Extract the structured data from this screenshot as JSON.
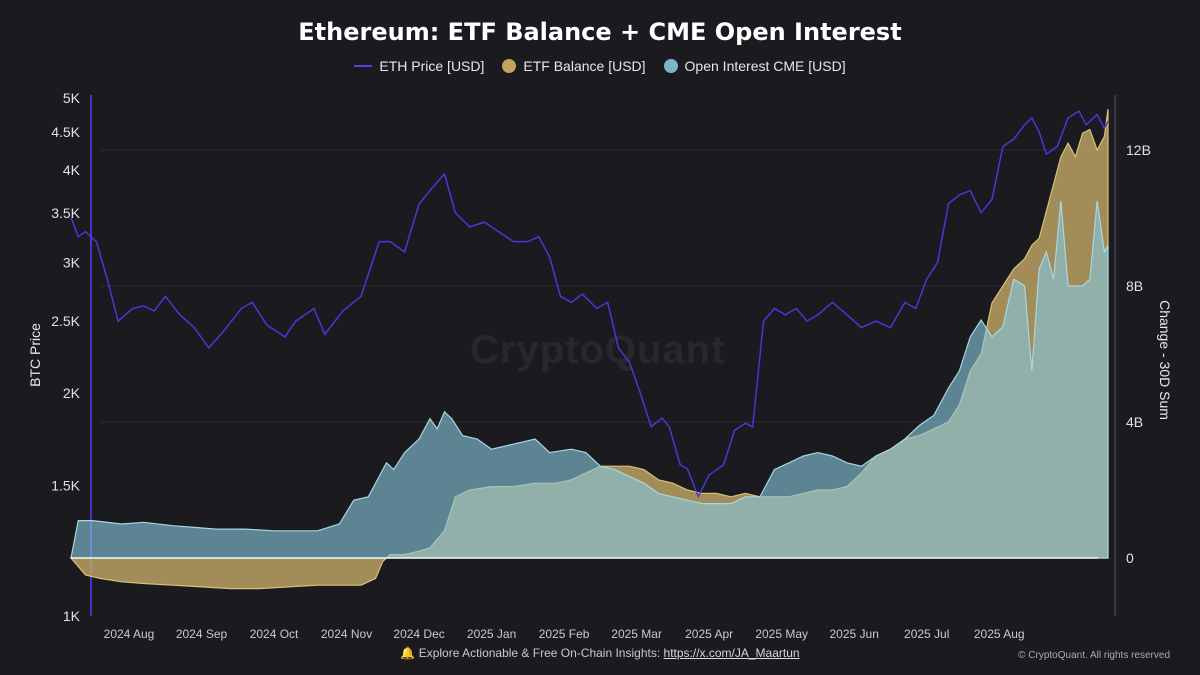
{
  "chart_data": {
    "type": "line+area",
    "title": "Ethereum: ETF Balance + CME Open Interest",
    "y_left_label": "BTC Price",
    "y_right_label": "Change - 30D Sum",
    "y_left_scale": "log",
    "y_left_ticks": [
      "1K",
      "1.5K",
      "2K",
      "2.5K",
      "3K",
      "3.5K",
      "4K",
      "4.5K",
      "5K"
    ],
    "y_left_tick_values": [
      1000,
      1500,
      2000,
      2500,
      3000,
      3500,
      4000,
      4500,
      5000
    ],
    "y_right_ticks": [
      "0",
      "4B",
      "8B",
      "12B"
    ],
    "y_right_tick_values": [
      0,
      4,
      8,
      12
    ],
    "y_right_range": [
      -1.7,
      13.5
    ],
    "x_ticks": [
      "2024 Aug",
      "2024 Sep",
      "2024 Oct",
      "2024 Nov",
      "2024 Dec",
      "2025 Jan",
      "2025 Feb",
      "2025 Mar",
      "2025 Apr",
      "2025 May",
      "2025 Jun",
      "2025 Jul",
      "2025 Aug"
    ],
    "x_range": [
      0,
      13.9
    ],
    "colors": {
      "eth": "#5a3fd8",
      "etf": "#cbb574",
      "oi": "#8cc4d8"
    },
    "legend_position": "top-center",
    "grid": true,
    "series": [
      {
        "name": "ETH Price [USD]",
        "axis": "left",
        "style": "line",
        "x": [
          -0.4,
          -0.3,
          -0.2,
          -0.05,
          0.1,
          0.25,
          0.45,
          0.6,
          0.75,
          0.9,
          1.1,
          1.3,
          1.5,
          1.7,
          1.95,
          2.1,
          2.3,
          2.55,
          2.7,
          2.95,
          3.1,
          3.35,
          3.6,
          3.85,
          4.0,
          4.2,
          4.4,
          4.6,
          4.75,
          4.9,
          5.1,
          5.3,
          5.5,
          5.7,
          5.9,
          6.05,
          6.2,
          6.35,
          6.5,
          6.65,
          6.85,
          7.0,
          7.15,
          7.3,
          7.45,
          7.6,
          7.75,
          7.85,
          8.0,
          8.1,
          8.25,
          8.4,
          8.6,
          8.75,
          8.9,
          9.0,
          9.15,
          9.3,
          9.45,
          9.6,
          9.75,
          9.9,
          10.1,
          10.3,
          10.5,
          10.7,
          10.9,
          11.1,
          11.25,
          11.4,
          11.55,
          11.7,
          11.85,
          12.0,
          12.15,
          12.3,
          12.45,
          12.6,
          12.75,
          12.85,
          12.95,
          13.05,
          13.2,
          13.35,
          13.5,
          13.6,
          13.75,
          13.85,
          13.9
        ],
        "y": [
          3450,
          3250,
          3300,
          3200,
          2850,
          2500,
          2600,
          2620,
          2580,
          2700,
          2550,
          2450,
          2300,
          2420,
          2600,
          2650,
          2470,
          2380,
          2500,
          2600,
          2400,
          2580,
          2700,
          3200,
          3200,
          3100,
          3600,
          3800,
          3950,
          3500,
          3350,
          3400,
          3300,
          3200,
          3200,
          3250,
          3050,
          2700,
          2650,
          2720,
          2600,
          2650,
          2300,
          2200,
          2000,
          1800,
          1850,
          1800,
          1600,
          1580,
          1450,
          1550,
          1600,
          1780,
          1820,
          1800,
          2500,
          2600,
          2550,
          2600,
          2500,
          2550,
          2650,
          2550,
          2450,
          2500,
          2450,
          2650,
          2600,
          2850,
          3000,
          3600,
          3700,
          3750,
          3500,
          3650,
          4300,
          4400,
          4600,
          4700,
          4500,
          4200,
          4300,
          4700,
          4800,
          4600,
          4750,
          4550,
          4650
        ]
      },
      {
        "name": "ETF Balance [USD]",
        "axis": "right",
        "style": "area",
        "x": [
          -0.4,
          -0.2,
          0.0,
          0.3,
          0.6,
          1.0,
          1.4,
          1.8,
          2.2,
          2.6,
          3.0,
          3.3,
          3.6,
          3.8,
          3.9,
          4.0,
          4.1,
          4.2,
          4.4,
          4.55,
          4.75,
          4.9,
          5.1,
          5.4,
          5.7,
          6.0,
          6.3,
          6.5,
          6.7,
          6.9,
          7.1,
          7.3,
          7.5,
          7.7,
          7.9,
          8.1,
          8.3,
          8.5,
          8.7,
          8.9,
          9.1,
          9.3,
          9.5,
          9.7,
          9.9,
          10.1,
          10.3,
          10.5,
          10.7,
          10.9,
          11.1,
          11.3,
          11.5,
          11.7,
          11.85,
          12.0,
          12.15,
          12.3,
          12.45,
          12.6,
          12.75,
          12.85,
          12.95,
          13.05,
          13.15,
          13.25,
          13.35,
          13.45,
          13.55,
          13.65,
          13.75,
          13.85,
          13.9
        ],
        "y": [
          0,
          -0.5,
          -0.6,
          -0.7,
          -0.75,
          -0.8,
          -0.85,
          -0.9,
          -0.9,
          -0.85,
          -0.8,
          -0.8,
          -0.8,
          -0.6,
          -0.1,
          0.1,
          0.1,
          0.1,
          0.2,
          0.3,
          0.8,
          1.8,
          2.0,
          2.1,
          2.1,
          2.2,
          2.2,
          2.3,
          2.5,
          2.7,
          2.7,
          2.7,
          2.6,
          2.3,
          2.2,
          2.0,
          1.9,
          1.9,
          1.8,
          1.9,
          1.8,
          1.8,
          1.8,
          1.9,
          2.0,
          2.0,
          2.1,
          2.5,
          3.0,
          3.2,
          3.5,
          3.6,
          3.8,
          4.0,
          4.5,
          5.5,
          6.0,
          7.5,
          8.0,
          8.5,
          8.8,
          9.2,
          9.4,
          10.2,
          11.0,
          11.8,
          12.2,
          11.8,
          12.5,
          12.6,
          12.0,
          12.4,
          13.2
        ]
      },
      {
        "name": "Open Interest CME [USD]",
        "axis": "right",
        "style": "area",
        "x": [
          -0.4,
          -0.3,
          -0.1,
          0.3,
          0.6,
          1.0,
          1.3,
          1.6,
          2.0,
          2.4,
          2.8,
          3.0,
          3.3,
          3.5,
          3.7,
          3.85,
          3.95,
          4.05,
          4.2,
          4.4,
          4.55,
          4.65,
          4.75,
          4.85,
          5.0,
          5.2,
          5.4,
          5.6,
          5.8,
          6.0,
          6.2,
          6.5,
          6.7,
          6.9,
          7.1,
          7.3,
          7.5,
          7.7,
          7.9,
          8.1,
          8.3,
          8.5,
          8.7,
          8.9,
          9.1,
          9.3,
          9.5,
          9.7,
          9.9,
          10.1,
          10.3,
          10.5,
          10.7,
          10.9,
          11.1,
          11.3,
          11.5,
          11.7,
          11.85,
          12.0,
          12.15,
          12.3,
          12.45,
          12.6,
          12.75,
          12.85,
          12.95,
          13.05,
          13.15,
          13.25,
          13.35,
          13.45,
          13.55,
          13.65,
          13.75,
          13.85,
          13.9
        ],
        "y": [
          0,
          1.1,
          1.1,
          1.0,
          1.05,
          0.95,
          0.9,
          0.85,
          0.85,
          0.8,
          0.8,
          0.8,
          1.0,
          1.7,
          1.8,
          2.4,
          2.8,
          2.6,
          3.1,
          3.5,
          4.1,
          3.8,
          4.3,
          4.1,
          3.6,
          3.5,
          3.2,
          3.3,
          3.4,
          3.5,
          3.1,
          3.2,
          3.1,
          2.7,
          2.6,
          2.4,
          2.2,
          1.9,
          1.8,
          1.7,
          1.6,
          1.6,
          1.6,
          1.8,
          1.8,
          2.6,
          2.8,
          3.0,
          3.1,
          3.0,
          2.8,
          2.7,
          3.0,
          3.2,
          3.5,
          3.9,
          4.2,
          5.0,
          5.5,
          6.5,
          7.0,
          6.5,
          6.8,
          8.2,
          8.0,
          5.5,
          8.5,
          9.0,
          8.2,
          10.5,
          8.0,
          8.0,
          8.0,
          8.2,
          10.5,
          9.0,
          9.2
        ]
      }
    ]
  },
  "legend": {
    "items": [
      {
        "label": "ETH Price [USD]"
      },
      {
        "label": "ETF Balance [USD]"
      },
      {
        "label": "Open Interest CME [USD]"
      }
    ]
  },
  "footer": {
    "text": "Explore Actionable & Free On-Chain Insights:",
    "link": "https://x.com/JA_Maartun",
    "copyright": "© CryptoQuant. All rights reserved",
    "bell_icon": "🔔"
  },
  "watermark": "CryptoQuant"
}
